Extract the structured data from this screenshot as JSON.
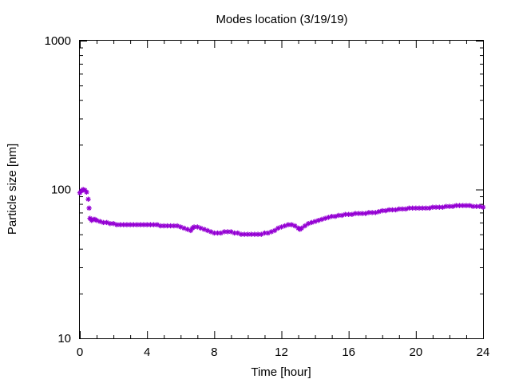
{
  "chart_data": {
    "type": "scatter",
    "title": "Modes location (3/19/19)",
    "xlabel": "Time [hour]",
    "ylabel": "Particle size [nm]",
    "xlim": [
      0,
      24
    ],
    "ylim": [
      10,
      1000
    ],
    "yscale": "log",
    "grid": false,
    "x_ticks": [
      0,
      4,
      8,
      12,
      16,
      20,
      24
    ],
    "x_tick_labels": [
      "0",
      "4",
      "8",
      "12",
      "16",
      "20",
      "24"
    ],
    "y_ticks": [
      10,
      100,
      1000
    ],
    "y_tick_labels": [
      "10",
      "100",
      "1000"
    ],
    "marker_color": "#9400d3",
    "series": [
      {
        "marker": "asterisk",
        "x": [
          0.0,
          0.1,
          0.2,
          0.3,
          0.4,
          0.5,
          0.55,
          0.6,
          0.7,
          0.8,
          0.9,
          1.0,
          1.2,
          1.4,
          1.6,
          1.8,
          2.0,
          2.2,
          2.4,
          2.6,
          2.8,
          3.0,
          3.2,
          3.4,
          3.6,
          3.8,
          4.0,
          4.2,
          4.4,
          4.6,
          4.8,
          5.0,
          5.2,
          5.4,
          5.6,
          5.8,
          6.0,
          6.2,
          6.4,
          6.6,
          6.7,
          6.8,
          7.0,
          7.2,
          7.4,
          7.6,
          7.8,
          8.0,
          8.2,
          8.4,
          8.6,
          8.8,
          9.0,
          9.2,
          9.4,
          9.6,
          9.8,
          10.0,
          10.2,
          10.4,
          10.6,
          10.8,
          11.0,
          11.2,
          11.4,
          11.6,
          11.8,
          12.0,
          12.2,
          12.4,
          12.6,
          12.8,
          13.0,
          13.1,
          13.2,
          13.4,
          13.6,
          13.8,
          14.0,
          14.2,
          14.4,
          14.6,
          14.8,
          15.0,
          15.2,
          15.4,
          15.6,
          15.8,
          16.0,
          16.2,
          16.4,
          16.6,
          16.8,
          17.0,
          17.2,
          17.4,
          17.6,
          17.8,
          18.0,
          18.2,
          18.4,
          18.6,
          18.8,
          19.0,
          19.2,
          19.4,
          19.6,
          19.8,
          20.0,
          20.2,
          20.4,
          20.6,
          20.8,
          21.0,
          21.2,
          21.4,
          21.6,
          21.8,
          22.0,
          22.2,
          22.4,
          22.6,
          22.8,
          23.0,
          23.2,
          23.4,
          23.6,
          23.8,
          24.0
        ],
        "y": [
          95,
          98,
          100,
          99,
          96,
          86,
          75,
          64,
          62,
          63,
          63,
          62,
          61,
          60,
          60,
          59,
          59,
          58,
          58,
          58,
          58,
          58,
          58,
          58,
          58,
          58,
          58,
          58,
          58,
          58,
          57,
          57,
          57,
          57,
          57,
          57,
          56,
          55,
          54,
          53,
          55,
          56,
          56,
          55,
          54,
          53,
          52,
          51,
          51,
          51,
          52,
          52,
          52,
          51,
          51,
          50,
          50,
          50,
          50,
          50,
          50,
          50,
          51,
          51,
          52,
          53,
          55,
          56,
          57,
          58,
          58,
          57,
          55,
          54,
          55,
          57,
          59,
          60,
          61,
          62,
          63,
          64,
          65,
          66,
          66,
          67,
          67,
          68,
          68,
          68,
          69,
          69,
          69,
          69,
          70,
          70,
          70,
          71,
          72,
          72,
          73,
          73,
          73,
          74,
          74,
          74,
          75,
          75,
          75,
          75,
          75,
          75,
          75,
          76,
          76,
          76,
          76,
          77,
          77,
          77,
          78,
          78,
          78,
          78,
          78,
          77,
          77,
          77,
          76
        ]
      }
    ]
  }
}
